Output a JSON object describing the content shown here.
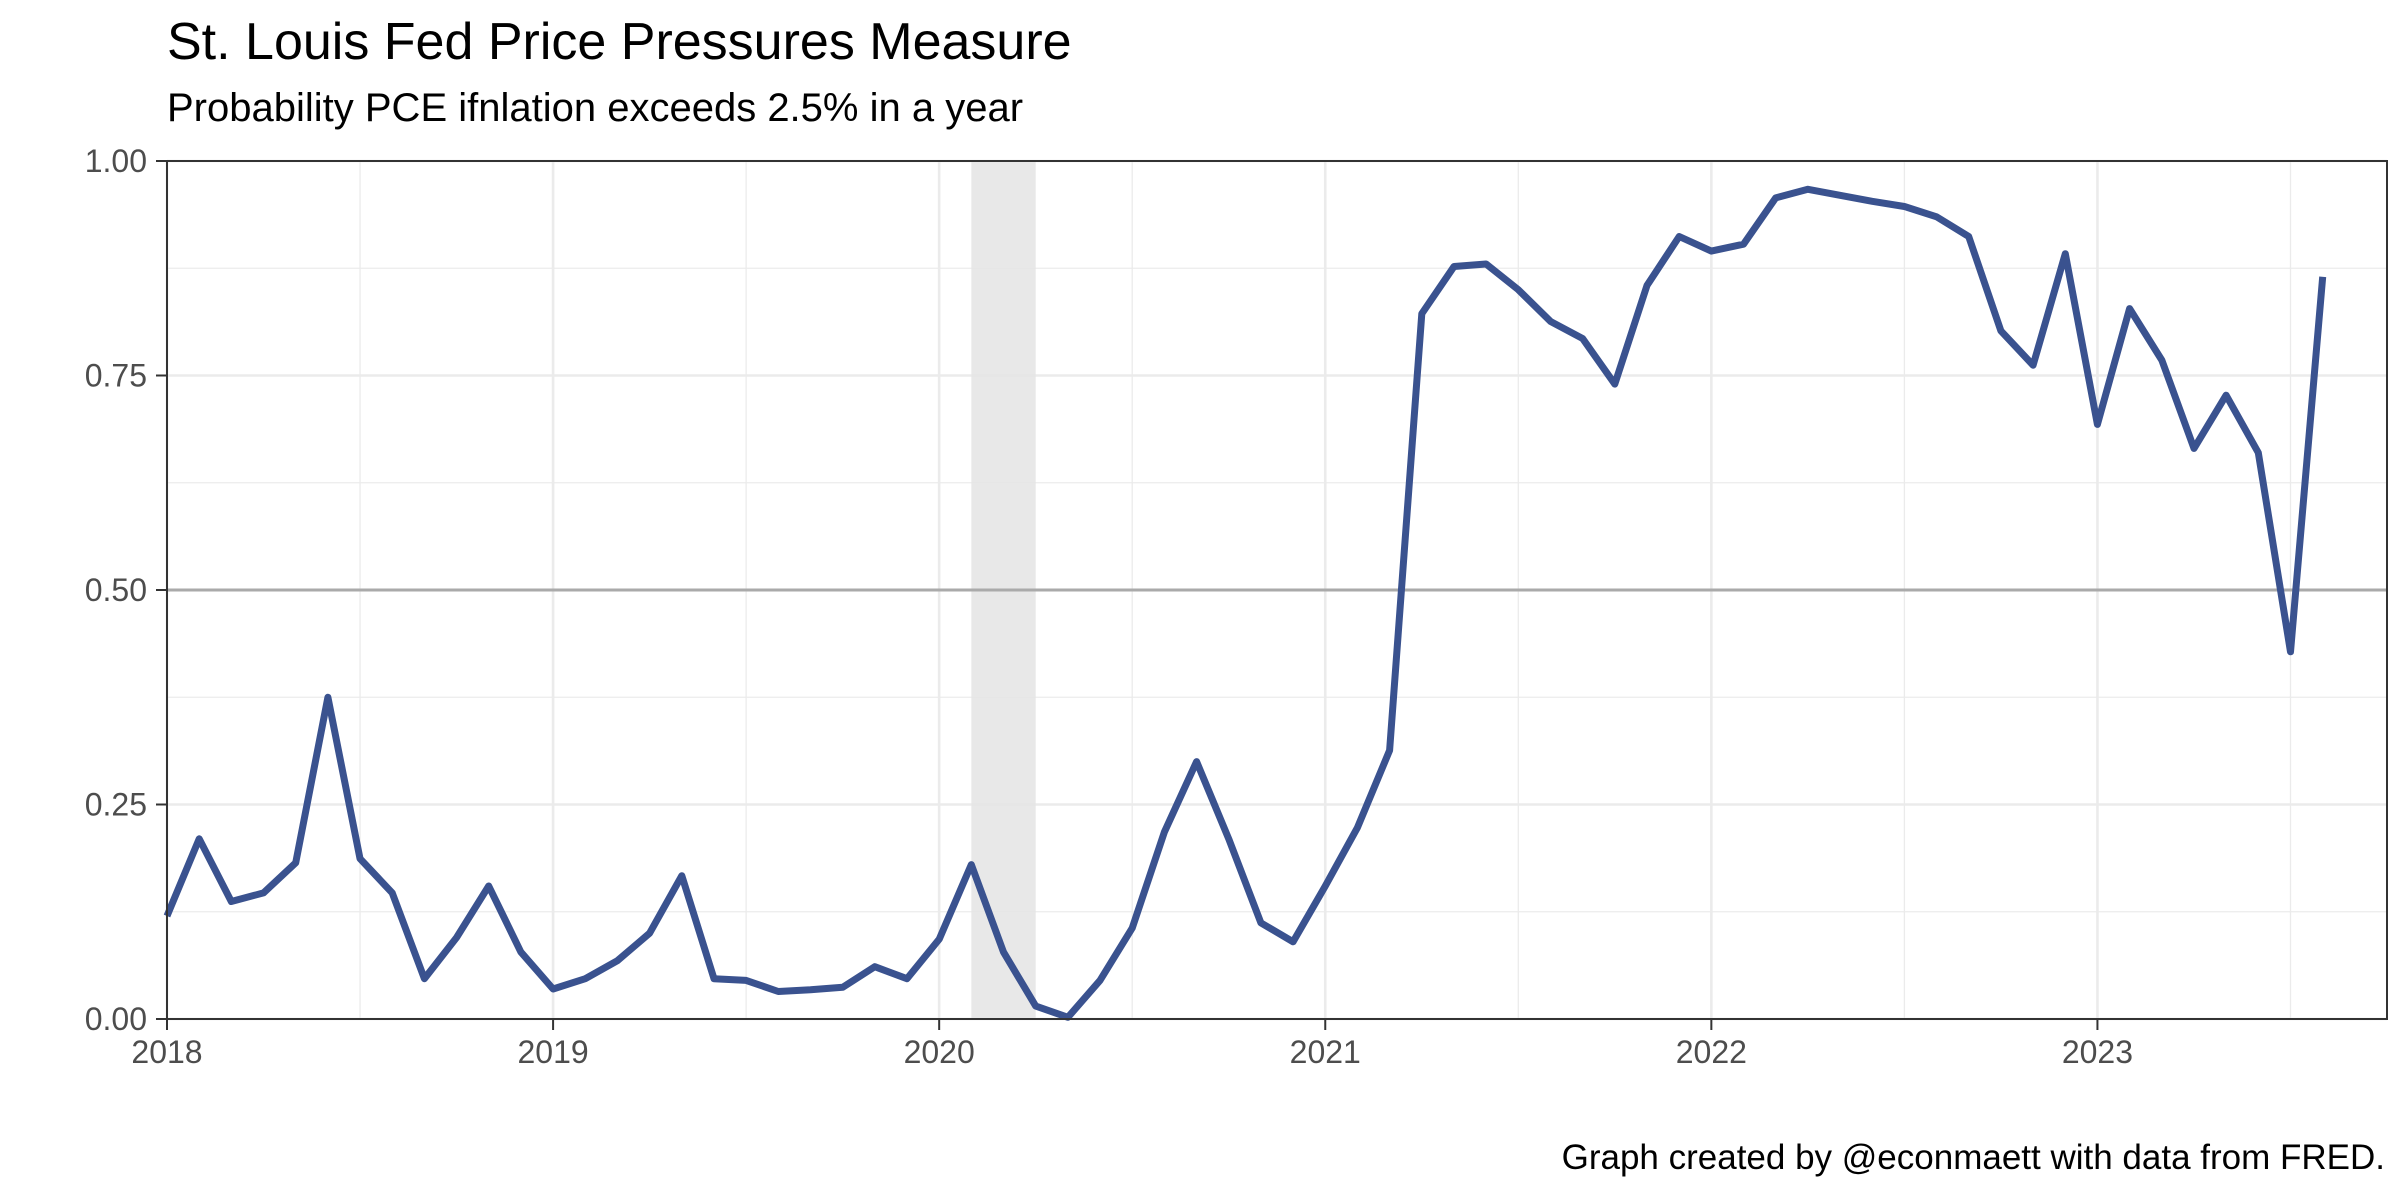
{
  "chart_data": {
    "type": "line",
    "title": "St. Louis Fed Price Pressures Measure",
    "subtitle": "Probability PCE ifnlation exceeds 2.5% in a year",
    "caption": "Graph created by @econmaett with data from FRED.",
    "xlabel": "",
    "ylabel": "",
    "x_start": "2018-01",
    "xlim": [
      "2018-01",
      "2023-10"
    ],
    "ylim": [
      0,
      1
    ],
    "x_ticks": [
      "2018",
      "2019",
      "2020",
      "2021",
      "2022",
      "2023"
    ],
    "y_ticks": [
      "0.00",
      "0.25",
      "0.50",
      "0.75",
      "1.00"
    ],
    "grid": true,
    "reference_line": 0.5,
    "recession_shading": [
      "2020-02",
      "2020-04"
    ],
    "colors": {
      "line": "#3a528f",
      "shade": "#e6e6e6",
      "refline": "#aaaaaa",
      "grid": "#ebebeb"
    },
    "series": [
      {
        "x": [
          "2018-01",
          "2018-02",
          "2018-03",
          "2018-04",
          "2018-05",
          "2018-06",
          "2018-07",
          "2018-08",
          "2018-09",
          "2018-10",
          "2018-11",
          "2018-12",
          "2019-01",
          "2019-02",
          "2019-03",
          "2019-04",
          "2019-05",
          "2019-06",
          "2019-07",
          "2019-08",
          "2019-09",
          "2019-10",
          "2019-11",
          "2019-12",
          "2020-01",
          "2020-02",
          "2020-03",
          "2020-04",
          "2020-05",
          "2020-06",
          "2020-07",
          "2020-08",
          "2020-09",
          "2020-10",
          "2020-11",
          "2020-12",
          "2021-01",
          "2021-02",
          "2021-03",
          "2021-04",
          "2021-05",
          "2021-06",
          "2021-07",
          "2021-08",
          "2021-09",
          "2021-10",
          "2021-11",
          "2021-12",
          "2022-01",
          "2022-02",
          "2022-03",
          "2022-04",
          "2022-05",
          "2022-06",
          "2022-07",
          "2022-08",
          "2022-09",
          "2022-10",
          "2022-11",
          "2022-12",
          "2023-01",
          "2023-02",
          "2023-03",
          "2023-04",
          "2023-05",
          "2023-06",
          "2023-07",
          "2023-08"
        ],
        "values": [
          0.12,
          0.21,
          0.137,
          0.147,
          0.182,
          0.375,
          0.187,
          0.147,
          0.047,
          0.095,
          0.155,
          0.078,
          0.035,
          0.047,
          0.068,
          0.1,
          0.167,
          0.047,
          0.045,
          0.032,
          0.034,
          0.037,
          0.061,
          0.047,
          0.093,
          0.18,
          0.078,
          0.015,
          0.002,
          0.045,
          0.106,
          0.218,
          0.3,
          0.21,
          0.112,
          0.09,
          0.155,
          0.223,
          0.313,
          0.822,
          0.877,
          0.88,
          0.85,
          0.813,
          0.793,
          0.74,
          0.855,
          0.912,
          0.895,
          0.903,
          0.957,
          0.967,
          0.96,
          0.953,
          0.947,
          0.935,
          0.912,
          0.802,
          0.762,
          0.892,
          0.693,
          0.828,
          0.768,
          0.665,
          0.727,
          0.66,
          0.428,
          0.865
        ]
      }
    ]
  }
}
